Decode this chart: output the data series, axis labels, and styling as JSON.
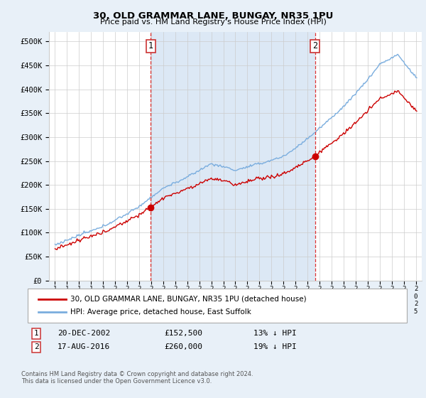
{
  "title": "30, OLD GRAMMAR LANE, BUNGAY, NR35 1PU",
  "subtitle": "Price paid vs. HM Land Registry's House Price Index (HPI)",
  "background_color": "#e8f0f8",
  "plot_bg_color": "#ffffff",
  "shaded_bg_color": "#dce8f5",
  "yticks": [
    0,
    50000,
    100000,
    150000,
    200000,
    250000,
    300000,
    350000,
    400000,
    450000,
    500000
  ],
  "ylim": [
    0,
    520000
  ],
  "xlim_start": 1994.5,
  "xlim_end": 2025.5,
  "legend_line1": "30, OLD GRAMMAR LANE, BUNGAY, NR35 1PU (detached house)",
  "legend_line2": "HPI: Average price, detached house, East Suffolk",
  "annotation1_label": "1",
  "annotation1_date": "20-DEC-2002",
  "annotation1_price": "£152,500",
  "annotation1_pct": "13% ↓ HPI",
  "annotation2_label": "2",
  "annotation2_date": "17-AUG-2016",
  "annotation2_price": "£260,000",
  "annotation2_pct": "19% ↓ HPI",
  "footer1": "Contains HM Land Registry data © Crown copyright and database right 2024.",
  "footer2": "This data is licensed under the Open Government Licence v3.0.",
  "hpi_color": "#7aadde",
  "price_color": "#cc0000",
  "vline_color": "#dd3333",
  "marker_color": "#cc0000",
  "grid_color": "#cccccc"
}
